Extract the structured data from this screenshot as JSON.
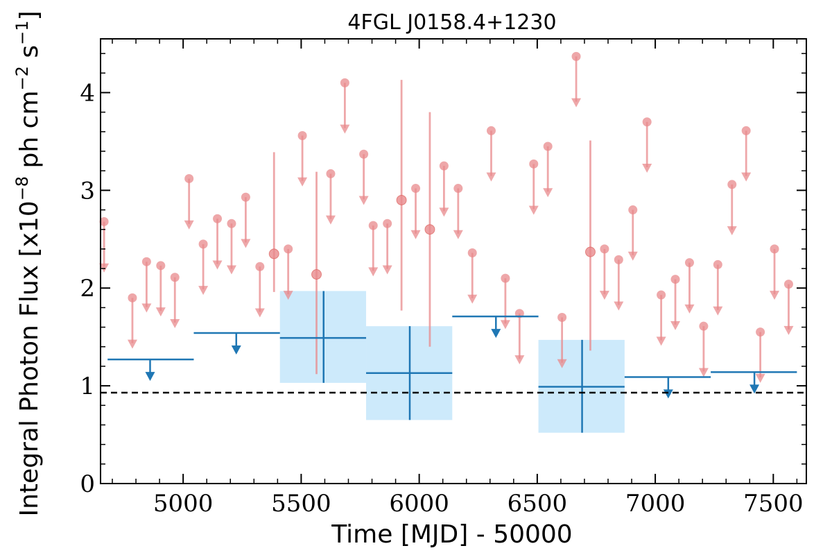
{
  "chart_data": {
    "type": "scatter",
    "title": "4FGL J0158.4+1230",
    "xlabel": "Time [MJD] - 50000",
    "ylabel_parts": [
      "Integral Photon Flux [x10",
      "−8",
      " ph cm",
      "−2",
      " s",
      "−1",
      "]"
    ],
    "xlim": [
      4650,
      7640
    ],
    "ylim": [
      0,
      4.55
    ],
    "x_ticks": [
      5000,
      5500,
      6000,
      6500,
      7000,
      7500
    ],
    "y_ticks": [
      0,
      1,
      2,
      3,
      4
    ],
    "grid": false,
    "reference_line": {
      "y": 0.93,
      "style": "dashed",
      "color": "#000000"
    },
    "colors": {
      "short_bins": "#e8898c",
      "long_bins": "#1f77b4",
      "error_box": "#cdeafb"
    },
    "series": [
      {
        "marker": "circle",
        "color": "#e8898c",
        "upper_limits": [
          {
            "x": 4665,
            "y": 2.68
          },
          {
            "x": 4785,
            "y": 1.9
          },
          {
            "x": 4845,
            "y": 2.27
          },
          {
            "x": 4905,
            "y": 2.23
          },
          {
            "x": 4965,
            "y": 2.11
          },
          {
            "x": 5025,
            "y": 3.12
          },
          {
            "x": 5085,
            "y": 2.45
          },
          {
            "x": 5145,
            "y": 2.71
          },
          {
            "x": 5205,
            "y": 2.66
          },
          {
            "x": 5265,
            "y": 2.93
          },
          {
            "x": 5325,
            "y": 2.22
          },
          {
            "x": 5445,
            "y": 2.4
          },
          {
            "x": 5505,
            "y": 3.56
          },
          {
            "x": 5625,
            "y": 3.17
          },
          {
            "x": 5685,
            "y": 4.1
          },
          {
            "x": 5765,
            "y": 3.37
          },
          {
            "x": 5805,
            "y": 2.64
          },
          {
            "x": 5865,
            "y": 2.66
          },
          {
            "x": 5985,
            "y": 3.02
          },
          {
            "x": 6105,
            "y": 3.25
          },
          {
            "x": 6165,
            "y": 3.02
          },
          {
            "x": 6225,
            "y": 2.36
          },
          {
            "x": 6305,
            "y": 3.61
          },
          {
            "x": 6365,
            "y": 2.1
          },
          {
            "x": 6425,
            "y": 1.74
          },
          {
            "x": 6485,
            "y": 3.27
          },
          {
            "x": 6545,
            "y": 3.45
          },
          {
            "x": 6605,
            "y": 1.7
          },
          {
            "x": 6665,
            "y": 4.37
          },
          {
            "x": 6785,
            "y": 2.4
          },
          {
            "x": 6845,
            "y": 2.29
          },
          {
            "x": 6905,
            "y": 2.8
          },
          {
            "x": 6965,
            "y": 3.7
          },
          {
            "x": 7025,
            "y": 1.93
          },
          {
            "x": 7085,
            "y": 2.09
          },
          {
            "x": 7145,
            "y": 2.26
          },
          {
            "x": 7205,
            "y": 1.61
          },
          {
            "x": 7265,
            "y": 2.24
          },
          {
            "x": 7325,
            "y": 3.06
          },
          {
            "x": 7385,
            "y": 3.61
          },
          {
            "x": 7445,
            "y": 1.55
          },
          {
            "x": 7505,
            "y": 2.4
          },
          {
            "x": 7565,
            "y": 2.04
          }
        ],
        "detections": [
          {
            "x": 5385,
            "y": 2.35,
            "err_low": 1.96,
            "err_high": 3.39
          },
          {
            "x": 5565,
            "y": 2.14,
            "err_low": 1.12,
            "err_high": 3.19
          },
          {
            "x": 5925,
            "y": 2.9,
            "err_low": 1.77,
            "err_high": 4.13
          },
          {
            "x": 6045,
            "y": 2.6,
            "err_low": 1.4,
            "err_high": 3.8
          },
          {
            "x": 6725,
            "y": 2.37,
            "err_low": 1.36,
            "err_high": 3.51
          }
        ]
      },
      {
        "marker": "crosshair",
        "color": "#1f77b4",
        "upper_limits": [
          {
            "x": 4860,
            "x_low": 4680,
            "x_high": 5045,
            "y": 1.27
          },
          {
            "x": 5225,
            "x_low": 5045,
            "x_high": 5410,
            "y": 1.54
          },
          {
            "x": 6325,
            "x_low": 6140,
            "x_high": 6505,
            "y": 1.71
          },
          {
            "x": 7055,
            "x_low": 6870,
            "x_high": 7235,
            "y": 1.09
          },
          {
            "x": 7420,
            "x_low": 7235,
            "x_high": 7600,
            "y": 1.14
          }
        ],
        "detections": [
          {
            "x": 5595,
            "x_low": 5410,
            "x_high": 5775,
            "y": 1.49,
            "err_low": 1.03,
            "err_high": 1.97
          },
          {
            "x": 5960,
            "x_low": 5775,
            "x_high": 6140,
            "y": 1.13,
            "err_low": 0.65,
            "err_high": 1.61
          },
          {
            "x": 6690,
            "x_low": 6505,
            "x_high": 6870,
            "y": 0.99,
            "err_low": 0.52,
            "err_high": 1.47
          }
        ]
      }
    ]
  }
}
